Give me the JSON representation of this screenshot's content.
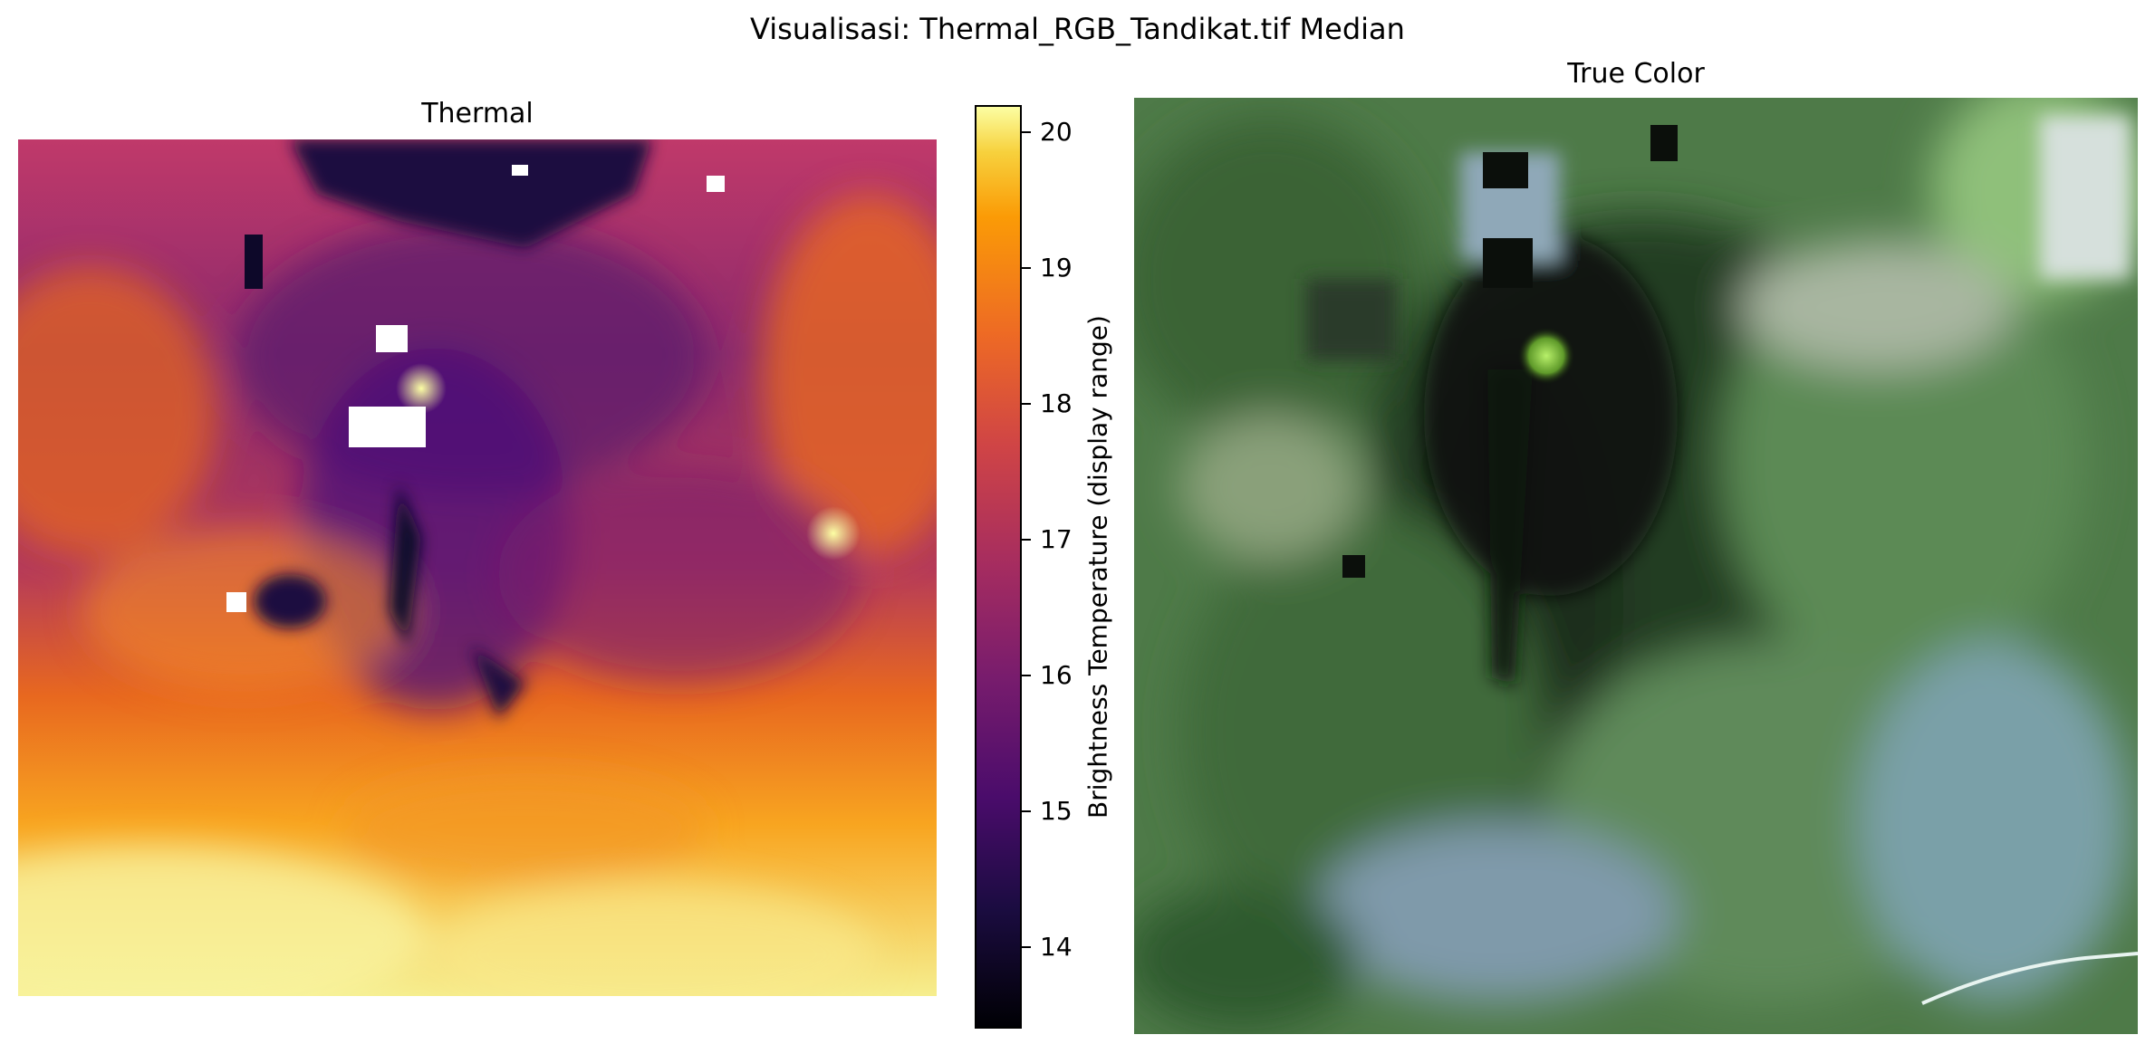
{
  "figure": {
    "suptitle": "Visualisasi: Thermal_RGB_Tandikat.tif Median"
  },
  "thermal_panel": {
    "title": "Thermal",
    "colormap": "inferno",
    "colorbar": {
      "label": "Brightness Temperature (display range)",
      "min": 13.4,
      "max": 20.2,
      "ticks": [
        "14",
        "15",
        "16",
        "17",
        "18",
        "19",
        "20"
      ],
      "tick_values": [
        14,
        15,
        16,
        17,
        18,
        19,
        20
      ]
    },
    "colors": {
      "cold": "#000004",
      "mid_cold": "#420a68",
      "mid": "#932667",
      "mid_warm": "#dd513a",
      "warm": "#fca50a",
      "hot": "#fcffa4",
      "nodata": "#ffffff"
    }
  },
  "true_color_panel": {
    "title": "True Color",
    "colors": {
      "forest": "#3d6a3a",
      "dark_forest": "#1f3a1d",
      "crater": "#0b120a",
      "crater_glow": "#a8e86a",
      "light_veg": "#7ea46a",
      "bluish": "#8aa6c8",
      "cloud": "#e8ecf0"
    }
  }
}
